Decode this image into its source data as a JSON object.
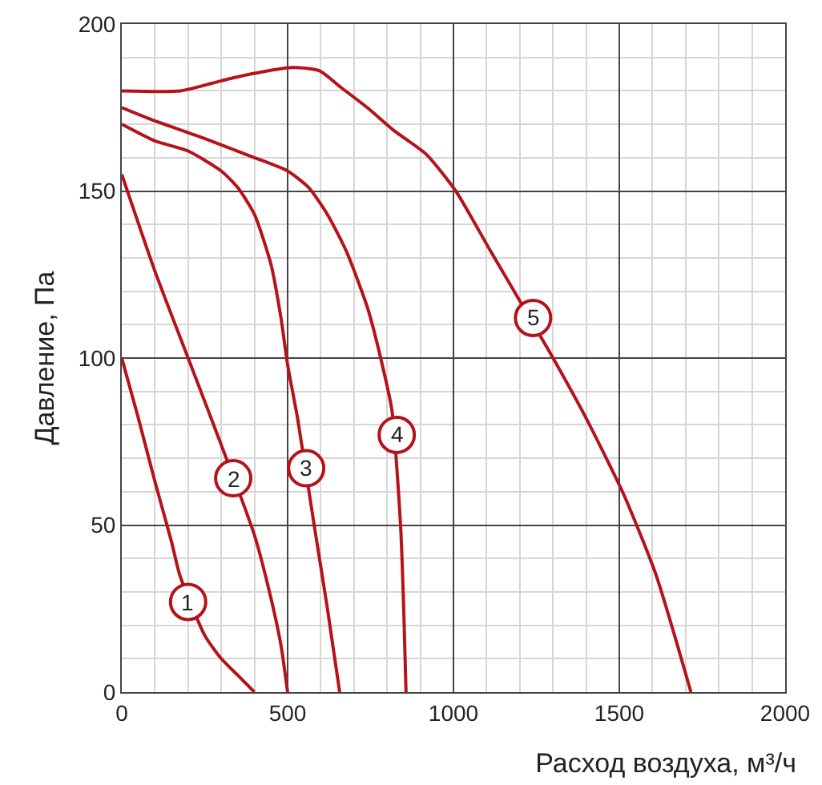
{
  "chart_data": {
    "type": "line",
    "xlabel": "Расход воздуха, м³/ч",
    "ylabel": "Давление, Па",
    "xlim": [
      0,
      2000
    ],
    "xticks": [
      0,
      500,
      1000,
      1500,
      2000
    ],
    "ylim": [
      0,
      200
    ],
    "yticks": [
      0,
      50,
      100,
      150,
      200
    ],
    "grid": true,
    "marker": "none",
    "line_style": "solid",
    "series": [
      {
        "color": "#b5121b",
        "x": [
          0,
          50,
          100,
          150,
          175,
          250,
          300,
          350,
          400
        ],
        "values": [
          100,
          82,
          63,
          45,
          35,
          17,
          10,
          5,
          0
        ]
      },
      {
        "color": "#b5121b",
        "x": [
          0,
          100,
          200,
          300,
          400,
          450,
          480,
          500
        ],
        "values": [
          155,
          126,
          100,
          74,
          47,
          28,
          14,
          0
        ]
      },
      {
        "color": "#b5121b",
        "x": [
          0,
          100,
          200,
          300,
          350,
          400,
          450,
          480,
          500,
          530,
          580,
          620,
          657
        ],
        "values": [
          170,
          165,
          162,
          156,
          151,
          143,
          128,
          112,
          98,
          82,
          50,
          25,
          0
        ]
      },
      {
        "color": "#b5121b",
        "x": [
          0,
          100,
          242,
          400,
          500,
          564,
          620,
          677,
          741,
          790,
          815,
          841,
          850,
          857
        ],
        "values": [
          175,
          171,
          166,
          160,
          156,
          151,
          143,
          132,
          115,
          96,
          84,
          49,
          25,
          0
        ]
      },
      {
        "color": "#b5121b",
        "x": [
          0,
          177,
          300,
          387,
          515,
          596,
          661,
          740,
          822,
          918,
          1007,
          1112,
          1289,
          1400,
          1514,
          1611,
          1716
        ],
        "values": [
          180,
          180,
          183,
          185,
          187,
          186,
          181,
          175,
          168,
          161,
          150,
          132,
          102,
          82,
          59,
          35,
          0
        ]
      }
    ],
    "annotations": [
      {
        "text": "1",
        "x": 200,
        "y": 27
      },
      {
        "text": "2",
        "x": 336,
        "y": 64
      },
      {
        "text": "3",
        "x": 556,
        "y": 67
      },
      {
        "text": "4",
        "x": 829,
        "y": 77
      },
      {
        "text": "5",
        "x": 1240,
        "y": 112
      }
    ]
  }
}
